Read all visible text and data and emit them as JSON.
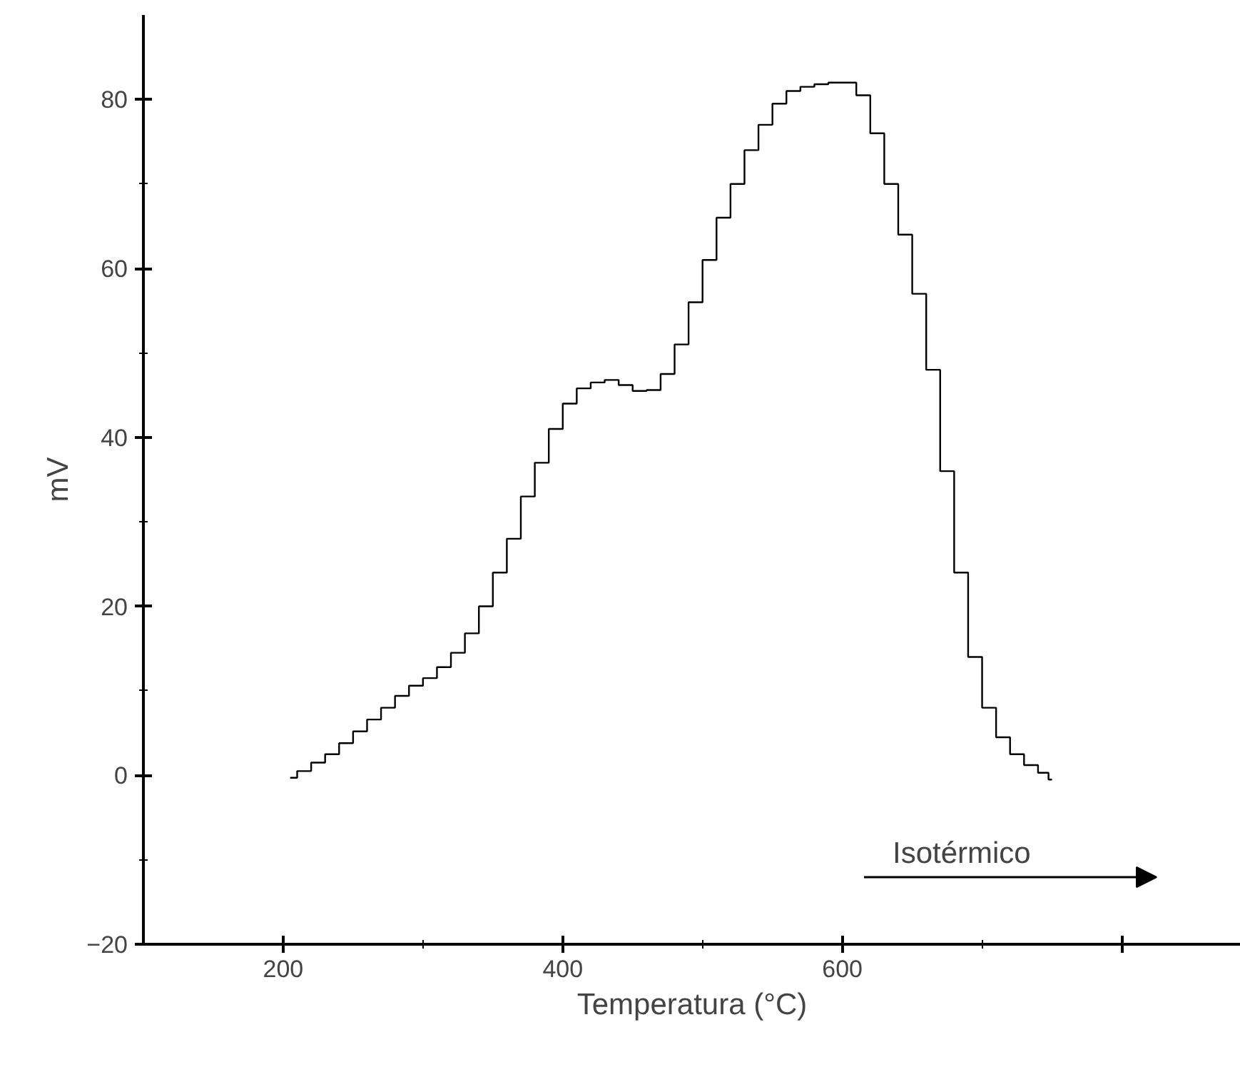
{
  "chart_data": {
    "type": "step",
    "xlabel": "Temperatura (°C)",
    "ylabel": "mV",
    "xlim": [
      100,
      885
    ],
    "ylim": [
      -20,
      90
    ],
    "xticks": [
      200,
      400,
      600,
      {
        "value": 800,
        "label": null
      }
    ],
    "yticks": [
      -20,
      0,
      20,
      40,
      60,
      80
    ],
    "grid": false,
    "series": [
      {
        "color": "#000000",
        "x": [
          205,
          215,
          225,
          235,
          245,
          255,
          265,
          275,
          285,
          295,
          305,
          315,
          325,
          335,
          345,
          355,
          365,
          375,
          385,
          395,
          405,
          415,
          425,
          435,
          445,
          455,
          465,
          475,
          485,
          495,
          505,
          515,
          525,
          535,
          545,
          555,
          565,
          575,
          585,
          595,
          605,
          615,
          625,
          635,
          645,
          655,
          665,
          675,
          685,
          695,
          705,
          715,
          725,
          735,
          745,
          750
        ],
        "values": [
          -0.3,
          0.5,
          1.5,
          2.5,
          3.8,
          5.2,
          6.6,
          8.0,
          9.4,
          10.6,
          11.5,
          12.8,
          14.5,
          16.8,
          20,
          24,
          28,
          33,
          37,
          41,
          44,
          45.8,
          46.5,
          46.8,
          46.2,
          45.5,
          45.6,
          47.5,
          51,
          56,
          61,
          66,
          70,
          74,
          77,
          79.5,
          81,
          81.5,
          81.8,
          82,
          82,
          80.5,
          76,
          70,
          64,
          57,
          48,
          36,
          24,
          14,
          8,
          4.5,
          2.5,
          1.2,
          0.3,
          -0.5
        ]
      }
    ],
    "annotations": [
      "Isotérmico"
    ]
  }
}
